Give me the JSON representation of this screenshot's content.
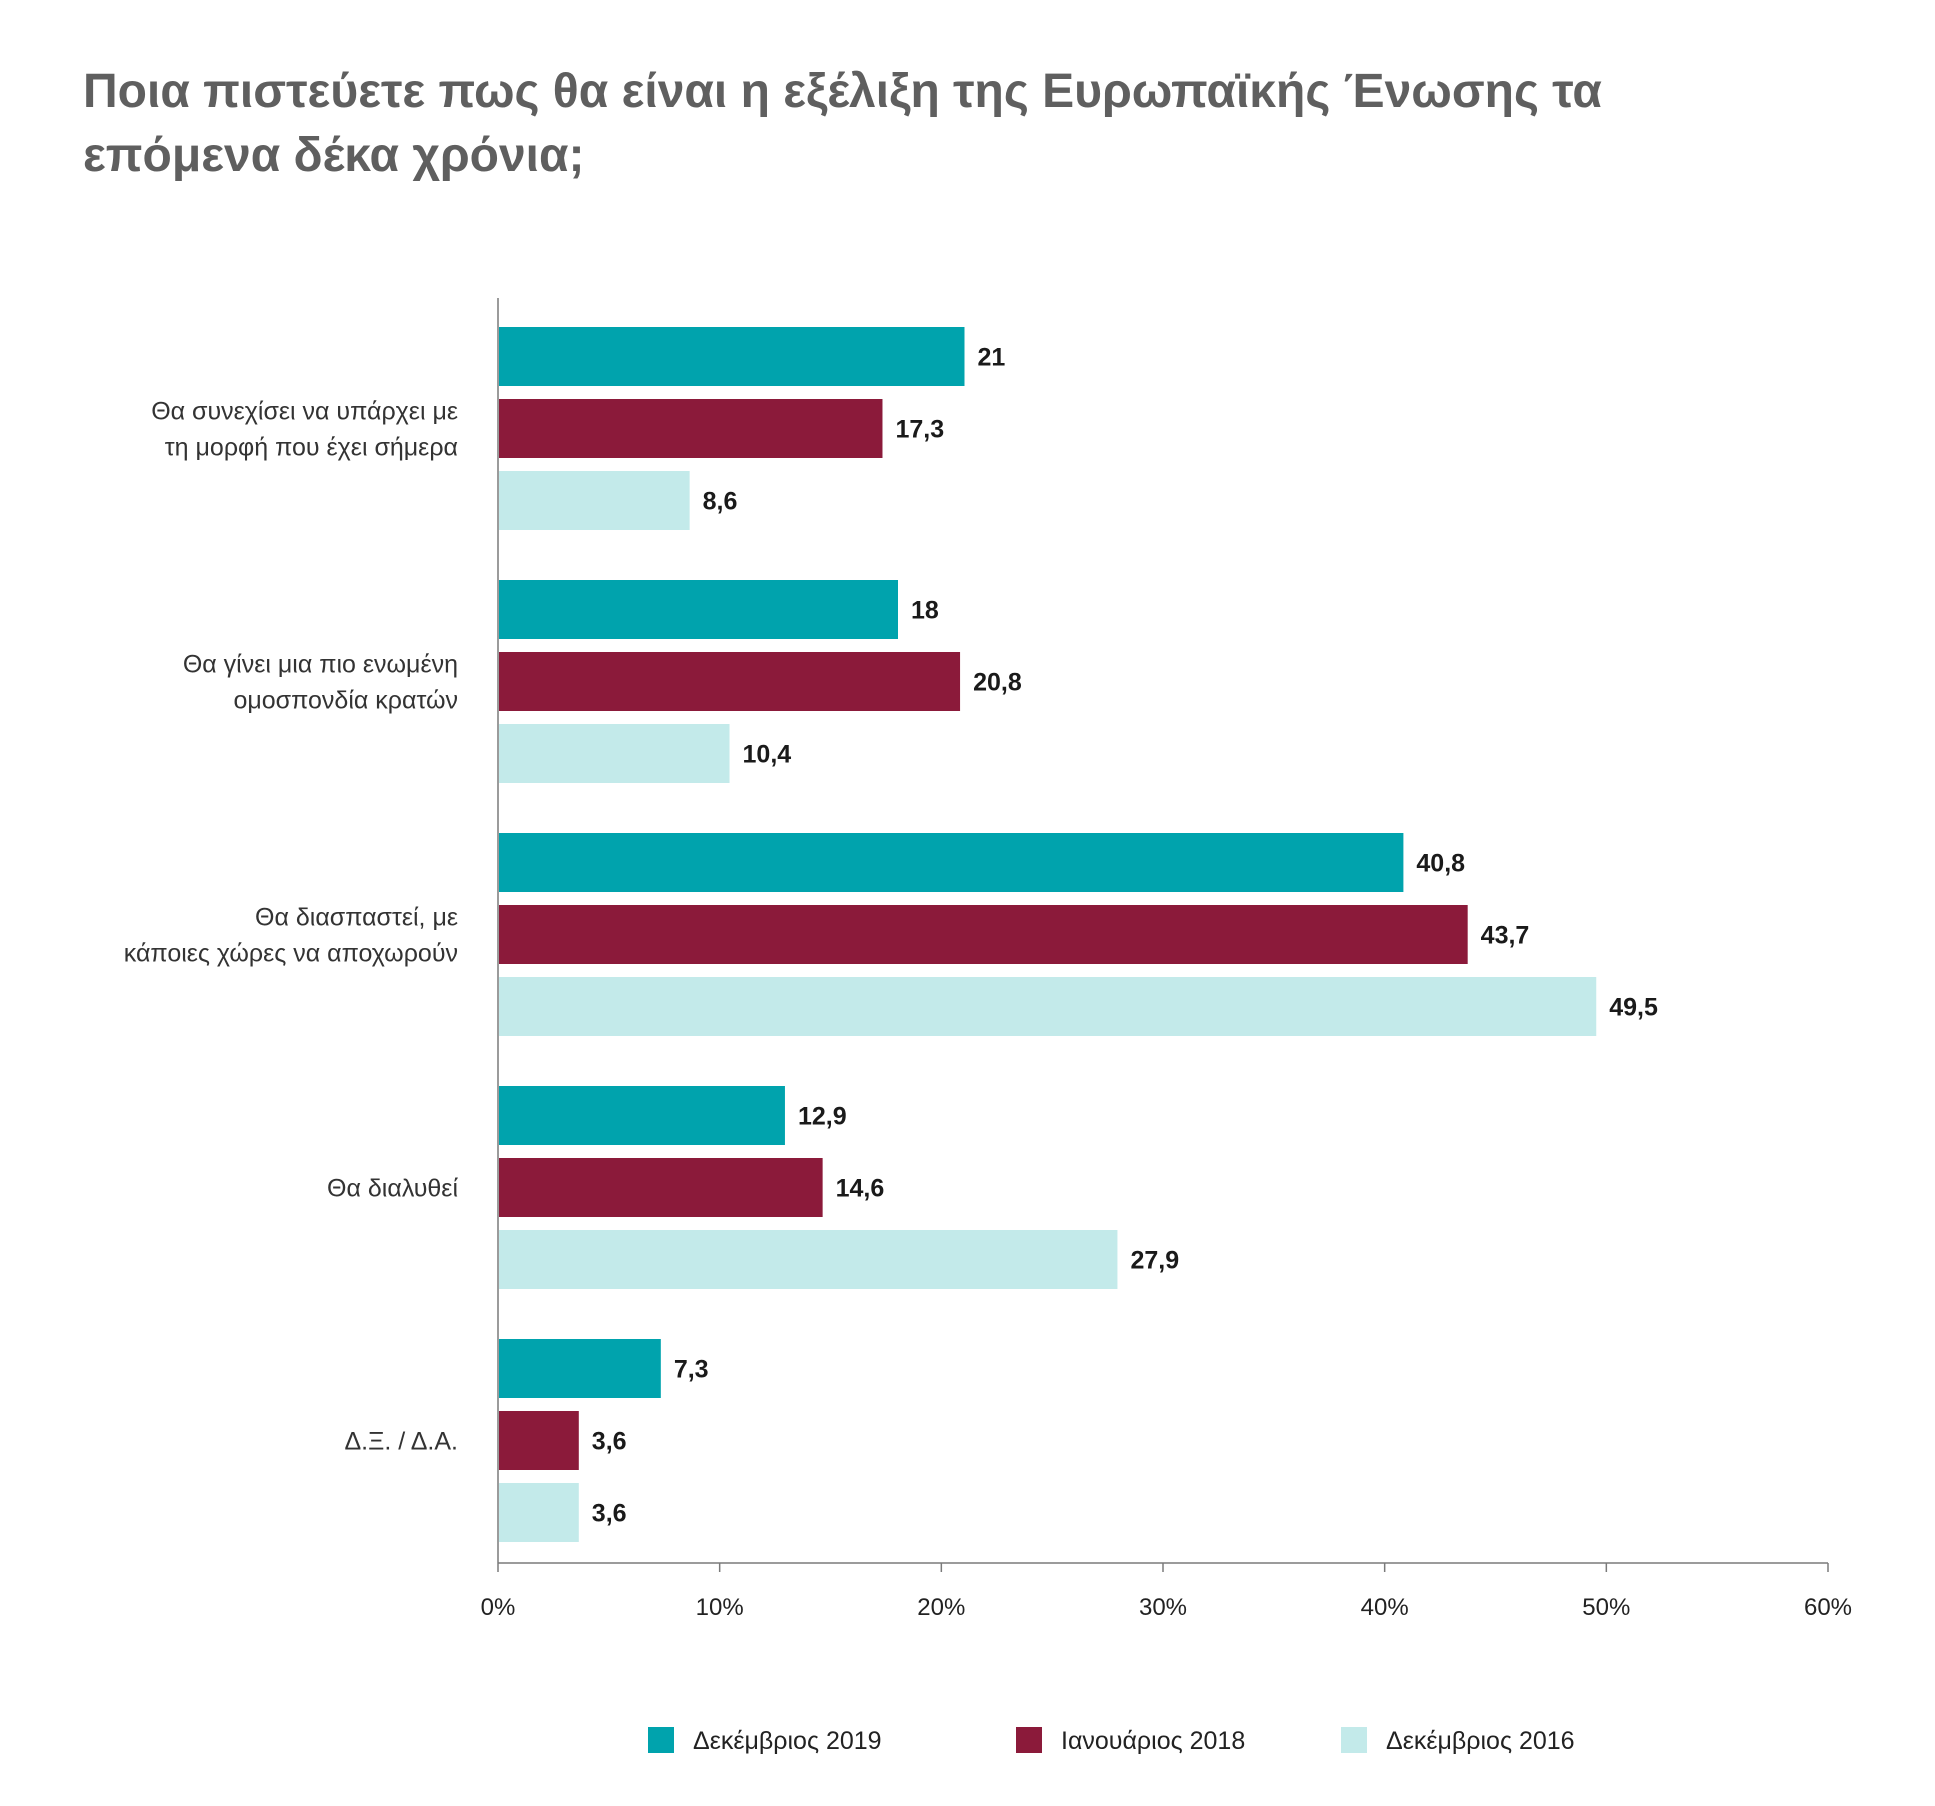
{
  "chart_data": {
    "type": "bar",
    "orientation": "horizontal",
    "title_lines": [
      "Ποια πιστεύετε πως θα είναι η εξέλιξη της Ευρωπαϊκής Ένωσης τα",
      "επόμενα δέκα χρόνια;"
    ],
    "categories": [
      [
        "Θα συνεχίσει να υπάρχει με",
        "τη μορφή που έχει σήμερα"
      ],
      [
        "Θα γίνει μια πιο ενωμένη",
        "ομοσπονδία κρατών"
      ],
      [
        "Θα διασπαστεί, με",
        "κάποιες χώρες να αποχωρούν"
      ],
      [
        "Θα διαλυθεί"
      ],
      [
        "Δ.Ξ. / Δ.Α."
      ]
    ],
    "series": [
      {
        "name": "Δεκέμβριος 2019",
        "color": "#00a3ad",
        "values": [
          21,
          18,
          40.8,
          12.9,
          7.3
        ],
        "labels": [
          "21",
          "18",
          "40,8",
          "12,9",
          "7,3"
        ]
      },
      {
        "name": "Ιανουάριος 2018",
        "color": "#8b1a3a",
        "values": [
          17.3,
          20.8,
          43.7,
          14.6,
          3.6
        ],
        "labels": [
          "17,3",
          "20,8",
          "43,7",
          "14,6",
          "3,6"
        ]
      },
      {
        "name": "Δεκέμβριος 2016",
        "color": "#c3eaea",
        "values": [
          8.6,
          10.4,
          49.5,
          27.9,
          3.6
        ],
        "labels": [
          "8,6",
          "10,4",
          "49,5",
          "27,9",
          "3,6"
        ]
      }
    ],
    "xlim": [
      0,
      60
    ],
    "xticks": [
      0,
      10,
      20,
      30,
      40,
      50,
      60
    ],
    "xtick_labels": [
      "0%",
      "10%",
      "20%",
      "30%",
      "40%",
      "50%",
      "60%"
    ],
    "grid": false,
    "legend_position": "bottom-center"
  }
}
